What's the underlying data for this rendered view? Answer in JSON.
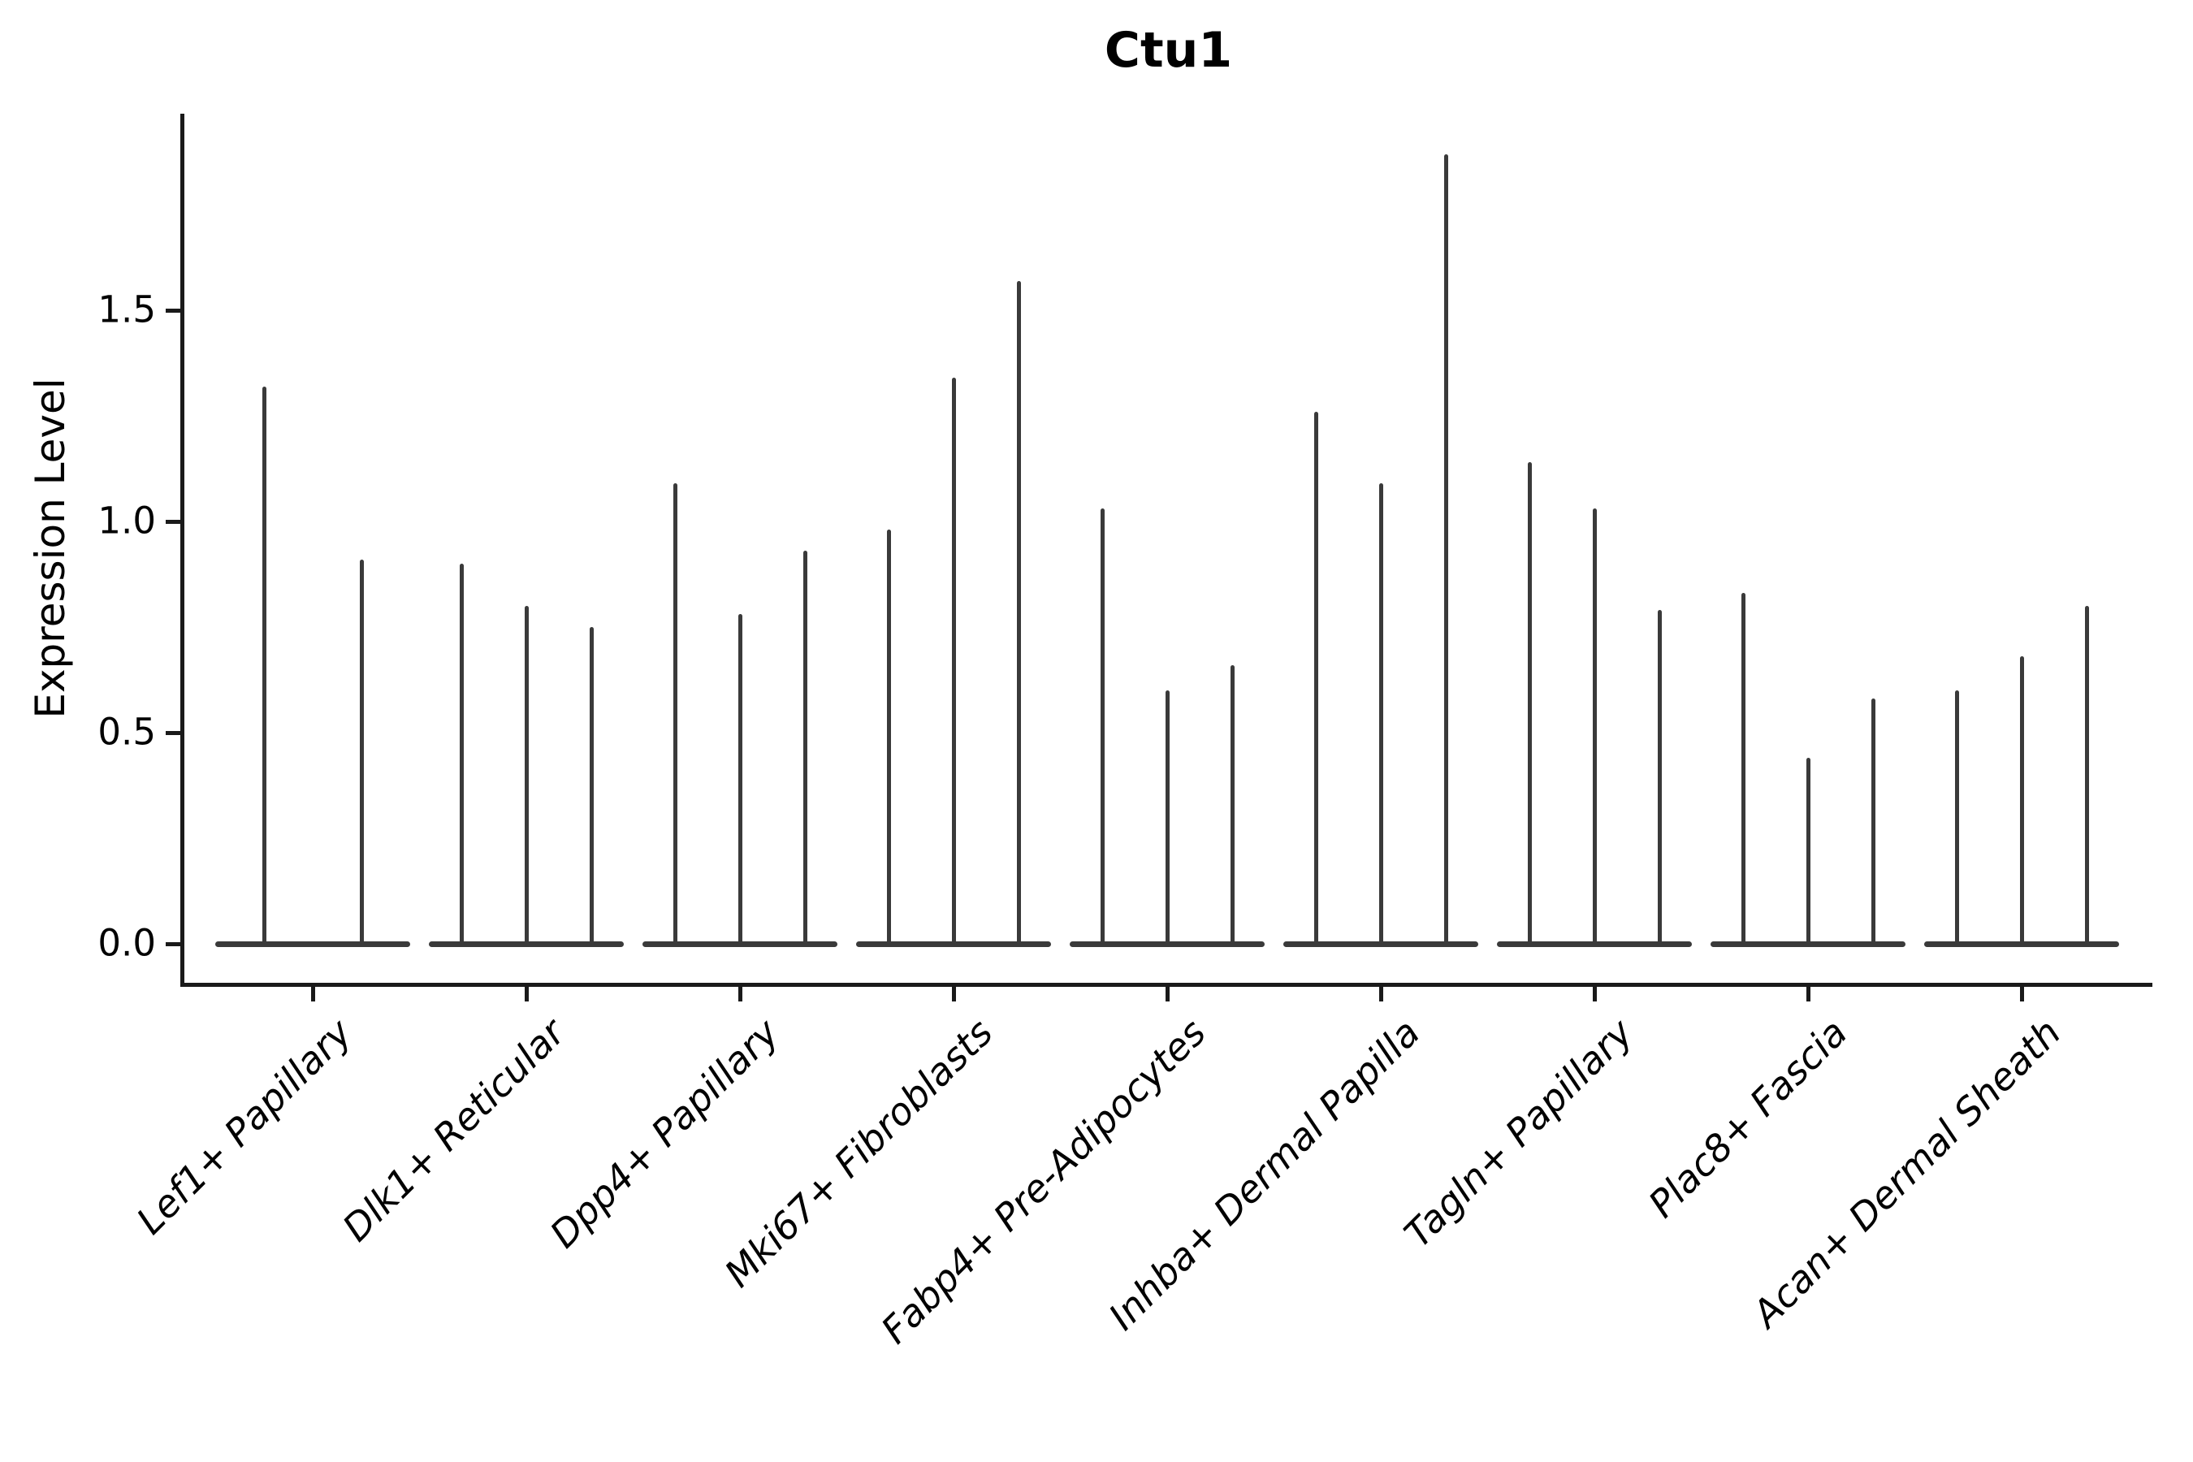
{
  "figure": {
    "title": "Ctu1",
    "ylabel": "Expression Level",
    "background": "#ffffff"
  },
  "colors": {
    "violin": "#3a3a3a",
    "axis": "#1a1a1a",
    "text": "#000000"
  },
  "chart_data": {
    "type": "violin",
    "title": "Ctu1",
    "xlabel": "",
    "ylabel": "Expression Level",
    "ylim": [
      0,
      1.96
    ],
    "yticks": [
      0.0,
      0.5,
      1.0,
      1.5
    ],
    "ytick_labels": [
      "0.0",
      "0.5",
      "1.0",
      "1.5"
    ],
    "grid": false,
    "legend": false,
    "note": "Degenerate violins rendered as thin vertical spikes rising from a flat base at expression 0; each category contains multiple violins; values are spike peak heights (Expression Level).",
    "categories": [
      "Lef1+ Papillary",
      "Dlk1+ Reticular",
      "Dpp4+ Papillary",
      "Mki67+ Fibroblasts",
      "Fabp4+ Pre-Adipocytes",
      "Inhba+ Dermal Papilla",
      "Tagln+ Papillary",
      "Plac8+ Fascia",
      "Acan+ Dermal Sheath"
    ],
    "groups": [
      {
        "category": "Lef1+ Papillary",
        "spikes": [
          1.32,
          0.91
        ]
      },
      {
        "category": "Dlk1+ Reticular",
        "spikes": [
          0.9,
          0.8,
          0.75
        ]
      },
      {
        "category": "Dpp4+ Papillary",
        "spikes": [
          1.09,
          0.78,
          0.93
        ]
      },
      {
        "category": "Mki67+ Fibroblasts",
        "spikes": [
          0.98,
          1.34,
          1.57
        ]
      },
      {
        "category": "Fabp4+ Pre-Adipocytes",
        "spikes": [
          1.03,
          0.6,
          0.66
        ]
      },
      {
        "category": "Inhba+ Dermal Papilla",
        "spikes": [
          1.26,
          1.09,
          1.87
        ]
      },
      {
        "category": "Tagln+ Papillary",
        "spikes": [
          1.14,
          1.03,
          0.79
        ]
      },
      {
        "category": "Plac8+ Fascia",
        "spikes": [
          0.83,
          0.44,
          0.58
        ]
      },
      {
        "category": "Acan+ Dermal Sheath",
        "spikes": [
          0.6,
          0.68,
          0.8
        ]
      }
    ]
  }
}
